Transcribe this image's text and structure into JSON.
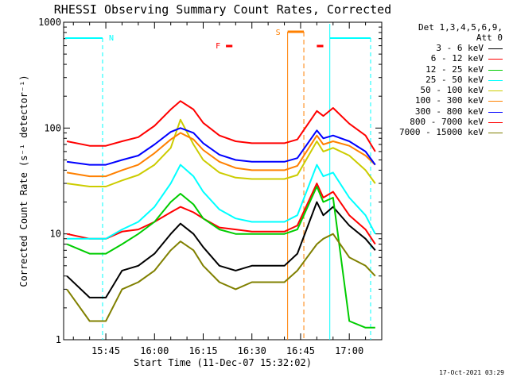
{
  "chart_data": {
    "type": "line",
    "title": "RHESSI Observing Summary Count Rates, Corrected",
    "xlabel": "Start Time (11-Dec-07 15:32:02)",
    "ylabel": "Corrected Count Rate (s⁻¹ detector⁻¹)",
    "yscale": "log",
    "ylim": [
      1,
      1000
    ],
    "y_ticks": [
      "1",
      "10",
      "100",
      "1000"
    ],
    "xlim": [
      "15:32",
      "17:10"
    ],
    "x_ticks": [
      "15:45",
      "16:00",
      "16:15",
      "16:30",
      "16:45",
      "17:00"
    ],
    "grid": false,
    "legend_position": "right",
    "legend_header": [
      "Det 1,3,4,5,6,9,",
      "Att 0"
    ],
    "series": [
      {
        "name": "3 - 6 keV",
        "color": "#000000",
        "x": [
          "15:33",
          "15:40",
          "15:45",
          "15:50",
          "15:55",
          "16:00",
          "16:05",
          "16:08",
          "16:12",
          "16:15",
          "16:20",
          "16:25",
          "16:30",
          "16:35",
          "16:40",
          "16:44",
          "16:50",
          "16:52",
          "16:55",
          "17:00",
          "17:05",
          "17:08"
        ],
        "y": [
          4,
          2.5,
          2.5,
          4.5,
          5,
          6.5,
          10,
          12.5,
          10,
          7.5,
          5,
          4.5,
          5,
          5,
          5,
          6.5,
          20,
          15,
          18,
          12,
          9,
          7
        ]
      },
      {
        "name": "6 - 12 keV",
        "color": "#ff0000",
        "x": [
          "15:33",
          "15:40",
          "15:45",
          "15:50",
          "15:55",
          "16:00",
          "16:05",
          "16:08",
          "16:12",
          "16:15",
          "16:20",
          "16:25",
          "16:30",
          "16:35",
          "16:40",
          "16:44",
          "16:50",
          "16:52",
          "16:55",
          "17:00",
          "17:05",
          "17:08"
        ],
        "y": [
          10,
          9,
          9,
          10.5,
          11,
          13,
          16,
          18,
          16,
          14,
          11.5,
          11,
          10.5,
          10.5,
          10.5,
          12,
          30,
          22,
          25,
          15,
          11,
          8
        ]
      },
      {
        "name": "12 - 25 keV",
        "color": "#00cc00",
        "x": [
          "15:33",
          "15:40",
          "15:45",
          "15:50",
          "15:55",
          "16:00",
          "16:05",
          "16:08",
          "16:12",
          "16:15",
          "16:20",
          "16:25",
          "16:30",
          "16:35",
          "16:40",
          "16:44",
          "16:50",
          "16:52",
          "16:55",
          "17:00",
          "17:05",
          "17:08"
        ],
        "y": [
          8,
          6.5,
          6.5,
          8,
          10,
          13,
          20,
          24,
          19,
          14,
          11,
          10,
          10,
          10,
          10,
          11,
          28,
          20,
          22,
          1.5,
          1.3,
          1.3
        ]
      },
      {
        "name": "25 - 50 keV",
        "color": "#00ffff",
        "x": [
          "15:33",
          "15:40",
          "15:45",
          "15:50",
          "15:55",
          "16:00",
          "16:05",
          "16:08",
          "16:12",
          "16:15",
          "16:20",
          "16:25",
          "16:30",
          "16:35",
          "16:40",
          "16:44",
          "16:50",
          "16:52",
          "16:55",
          "17:00",
          "17:05",
          "17:08"
        ],
        "y": [
          9,
          9,
          9,
          11,
          13,
          18,
          30,
          45,
          35,
          25,
          17,
          14,
          13,
          13,
          13,
          15,
          45,
          35,
          38,
          22,
          15,
          10
        ]
      },
      {
        "name": "50 - 100 keV",
        "color": "#cccc00",
        "x": [
          "15:33",
          "15:40",
          "15:45",
          "15:50",
          "15:55",
          "16:00",
          "16:05",
          "16:08",
          "16:12",
          "16:15",
          "16:20",
          "16:25",
          "16:30",
          "16:35",
          "16:40",
          "16:44",
          "16:50",
          "16:52",
          "16:55",
          "17:00",
          "17:05",
          "17:08"
        ],
        "y": [
          30,
          28,
          28,
          32,
          36,
          45,
          65,
          120,
          70,
          50,
          38,
          34,
          33,
          33,
          33,
          36,
          75,
          60,
          65,
          55,
          40,
          30
        ]
      },
      {
        "name": "100 - 300 keV",
        "color": "#ff8000",
        "x": [
          "15:33",
          "15:40",
          "15:45",
          "15:50",
          "15:55",
          "16:00",
          "16:05",
          "16:08",
          "16:12",
          "16:15",
          "16:20",
          "16:25",
          "16:30",
          "16:35",
          "16:40",
          "16:44",
          "16:50",
          "16:52",
          "16:55",
          "17:00",
          "17:05",
          "17:08"
        ],
        "y": [
          38,
          35,
          35,
          40,
          45,
          58,
          78,
          90,
          78,
          62,
          48,
          42,
          40,
          40,
          40,
          44,
          85,
          70,
          75,
          68,
          55,
          45
        ]
      },
      {
        "name": "300 - 800 keV",
        "color": "#0000ff",
        "x": [
          "15:33",
          "15:40",
          "15:45",
          "15:50",
          "15:55",
          "16:00",
          "16:05",
          "16:08",
          "16:12",
          "16:15",
          "16:20",
          "16:25",
          "16:30",
          "16:35",
          "16:40",
          "16:44",
          "16:50",
          "16:52",
          "16:55",
          "17:00",
          "17:05",
          "17:08"
        ],
        "y": [
          48,
          45,
          45,
          50,
          55,
          70,
          92,
          100,
          90,
          72,
          56,
          50,
          48,
          48,
          48,
          52,
          95,
          80,
          85,
          75,
          60,
          45
        ]
      },
      {
        "name": "800 - 7000 keV",
        "color": "#ff0000",
        "x": [
          "15:33",
          "15:40",
          "15:45",
          "15:50",
          "15:55",
          "16:00",
          "16:05",
          "16:08",
          "16:12",
          "16:15",
          "16:20",
          "16:25",
          "16:30",
          "16:35",
          "16:40",
          "16:44",
          "16:50",
          "16:52",
          "16:55",
          "17:00",
          "17:05",
          "17:08"
        ],
        "y": [
          75,
          68,
          68,
          75,
          82,
          105,
          150,
          180,
          150,
          112,
          85,
          75,
          72,
          72,
          72,
          78,
          145,
          130,
          155,
          110,
          85,
          60
        ]
      },
      {
        "name": "7000 - 15000 keV",
        "color": "#808000",
        "x": [
          "15:33",
          "15:40",
          "15:45",
          "15:50",
          "15:55",
          "16:00",
          "16:05",
          "16:08",
          "16:12",
          "16:15",
          "16:20",
          "16:25",
          "16:30",
          "16:35",
          "16:40",
          "16:44",
          "16:50",
          "16:52",
          "16:55",
          "17:00",
          "17:05",
          "17:08"
        ],
        "y": [
          3,
          1.5,
          1.5,
          3,
          3.5,
          4.5,
          7,
          8.5,
          7,
          5,
          3.5,
          3,
          3.5,
          3.5,
          3.5,
          4.5,
          8,
          9,
          10,
          6,
          5,
          4
        ]
      }
    ],
    "annotations": [
      {
        "text": "N",
        "color": "#00ffff"
      },
      {
        "text": "F",
        "color": "#ff0000"
      },
      {
        "text": "S",
        "color": "#ff8000"
      }
    ],
    "footer": "17-Oct-2021 03:29"
  }
}
